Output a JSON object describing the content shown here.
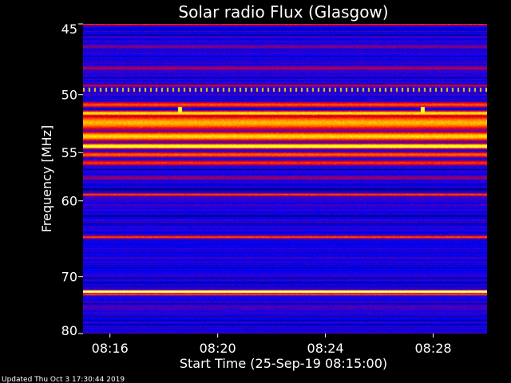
{
  "chart_data": {
    "type": "heatmap",
    "title": "Solar radio Flux (Glasgow)",
    "xlabel": "Start Time (25-Sep-19 08:15:00)",
    "ylabel": "Frequency [MHz]",
    "x_ticks": [
      "08:16",
      "08:20",
      "08:24",
      "08:28"
    ],
    "x_tick_minutes": [
      1,
      5,
      9,
      13
    ],
    "x_range_minutes": [
      0,
      15
    ],
    "y_ticks": [
      45,
      50,
      55,
      60,
      70,
      80
    ],
    "y_range_mhz": [
      45,
      80
    ],
    "y_scale": "reciprocal",
    "colormap": [
      "#000000",
      "#0000ff",
      "#ff0000",
      "#ffff00",
      "#ffffff"
    ],
    "bands": [
      {
        "freq_mhz": 45.0,
        "width_mhz": 0.15,
        "level": 0.55
      },
      {
        "freq_mhz": 46.5,
        "width_mhz": 0.3,
        "level": 0.38
      },
      {
        "freq_mhz": 48.0,
        "width_mhz": 0.3,
        "level": 0.42
      },
      {
        "freq_mhz": 49.3,
        "width_mhz": 0.2,
        "level": 0.45
      },
      {
        "freq_mhz": 50.8,
        "width_mhz": 0.35,
        "level": 0.58
      },
      {
        "freq_mhz": 51.5,
        "width_mhz": 0.3,
        "level": 0.74
      },
      {
        "freq_mhz": 52.3,
        "width_mhz": 0.9,
        "level": 0.68
      },
      {
        "freq_mhz": 53.5,
        "width_mhz": 0.6,
        "level": 0.72
      },
      {
        "freq_mhz": 54.4,
        "width_mhz": 0.35,
        "level": 0.82
      },
      {
        "freq_mhz": 55.2,
        "width_mhz": 0.4,
        "level": 0.6
      },
      {
        "freq_mhz": 56.0,
        "width_mhz": 0.4,
        "level": 0.55
      },
      {
        "freq_mhz": 57.5,
        "width_mhz": 0.5,
        "level": 0.4
      },
      {
        "freq_mhz": 59.3,
        "width_mhz": 0.25,
        "level": 0.58
      },
      {
        "freq_mhz": 64.4,
        "width_mhz": 0.3,
        "level": 0.58
      },
      {
        "freq_mhz": 72.4,
        "width_mhz": 0.35,
        "level": 0.97
      },
      {
        "freq_mhz": 72.9,
        "width_mhz": 0.2,
        "level": 0.62
      }
    ],
    "bursts": [
      {
        "time_minutes": 3.6,
        "freq_mhz": 51.2,
        "level": 0.82
      },
      {
        "time_minutes": 12.6,
        "freq_mhz": 51.2,
        "level": 0.82
      }
    ],
    "dotted_line": {
      "freq_mhz": 49.6,
      "level": 0.7
    }
  },
  "footer": {
    "updated": "Updated Thu Oct  3 17:30:44 2019"
  }
}
